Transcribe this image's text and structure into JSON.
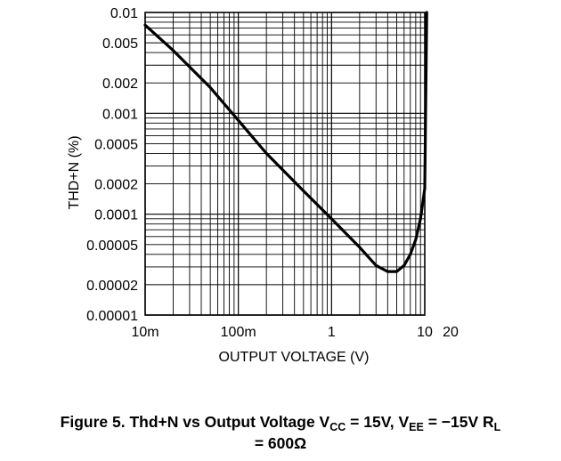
{
  "chart_data": {
    "type": "line",
    "xlabel": "OUTPUT VOLTAGE (V)",
    "ylabel": "THD+N (%)",
    "xscale": "log",
    "yscale": "log",
    "xlim": [
      0.01,
      10
    ],
    "ylim": [
      1e-05,
      0.01
    ],
    "grid": true,
    "x_ticks": [
      {
        "value": 0.01,
        "label": "10m"
      },
      {
        "value": 0.1,
        "label": "100m"
      },
      {
        "value": 1,
        "label": "1"
      },
      {
        "value": 10,
        "label": "10"
      }
    ],
    "x_extra_label": "20",
    "y_ticks": [
      {
        "value": 0.01,
        "label": "0.01"
      },
      {
        "value": 0.005,
        "label": "0.005"
      },
      {
        "value": 0.002,
        "label": "0.002"
      },
      {
        "value": 0.001,
        "label": "0.001"
      },
      {
        "value": 0.0005,
        "label": "0.0005"
      },
      {
        "value": 0.0002,
        "label": "0.0002"
      },
      {
        "value": 0.0001,
        "label": "0.0001"
      },
      {
        "value": 5e-05,
        "label": "0.00005"
      },
      {
        "value": 2e-05,
        "label": "0.00002"
      },
      {
        "value": 1e-05,
        "label": "0.00001"
      }
    ],
    "series": [
      {
        "color": "#000000",
        "x": [
          0.01,
          0.02,
          0.05,
          0.1,
          0.2,
          0.5,
          1,
          2,
          3,
          4,
          5,
          6,
          7,
          8,
          9,
          10,
          10.5
        ],
        "y": [
          0.0075,
          0.0042,
          0.0018,
          0.00085,
          0.0004,
          0.00017,
          9e-05,
          4.7e-05,
          3.1e-05,
          2.7e-05,
          2.7e-05,
          3.1e-05,
          4e-05,
          5.6e-05,
          9e-05,
          0.00018,
          0.01
        ]
      }
    ]
  },
  "caption": {
    "line1_pre": "Figure 5. Thd+N vs Output Voltage V",
    "sub1": "CC",
    "line1_mid": " = 15V, V",
    "sub2": "EE",
    "line1_post": " = −15V R",
    "sub3": "L",
    "line2": "= 600Ω"
  }
}
